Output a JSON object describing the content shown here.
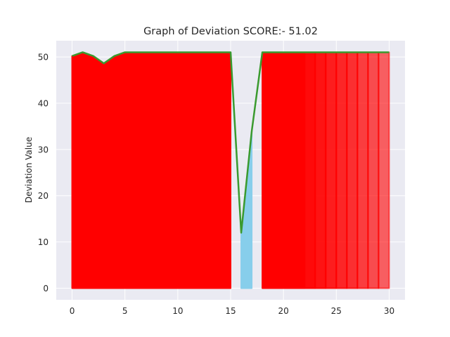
{
  "chart_data": {
    "type": "area",
    "title": "Graph of Deviation SCORE:- 51.02",
    "xlabel": "",
    "ylabel": "Deviation Value",
    "xlim": [
      -1.5,
      31.5
    ],
    "ylim": [
      -2.5,
      53.5
    ],
    "x_ticks": [
      0,
      5,
      10,
      15,
      20,
      25,
      30
    ],
    "y_ticks": [
      0,
      10,
      20,
      30,
      40,
      50
    ],
    "grid": true,
    "x": [
      0,
      1,
      2,
      3,
      4,
      5,
      6,
      7,
      8,
      9,
      10,
      11,
      12,
      13,
      14,
      15,
      16,
      17,
      18,
      19,
      20,
      21,
      22,
      23,
      24,
      25,
      26,
      27,
      28,
      29,
      30
    ],
    "values": [
      50.2,
      51,
      50.2,
      48.6,
      50.2,
      51,
      51,
      51,
      51,
      51,
      51,
      51,
      51,
      51,
      51,
      51,
      12,
      34,
      51,
      51,
      51,
      51,
      51,
      51,
      51,
      51,
      51,
      51,
      51,
      51,
      51
    ],
    "segments": [
      {
        "from": 0,
        "to": 15,
        "color": "#ff0000",
        "alpha": 1.0
      },
      {
        "from": 16,
        "to": 17,
        "color": "#87ceeb",
        "alpha": 1.0
      },
      {
        "from": 18,
        "to": 22,
        "color": "#ff0000",
        "alpha": 1.0
      },
      {
        "from": 22,
        "to": 23,
        "color": "#ff0000",
        "alpha": 0.96
      },
      {
        "from": 23,
        "to": 24,
        "color": "#ff0000",
        "alpha": 0.92
      },
      {
        "from": 24,
        "to": 25,
        "color": "#ff0000",
        "alpha": 0.88
      },
      {
        "from": 25,
        "to": 26,
        "color": "#ff0000",
        "alpha": 0.84
      },
      {
        "from": 26,
        "to": 27,
        "color": "#ff0000",
        "alpha": 0.8
      },
      {
        "from": 27,
        "to": 28,
        "color": "#ff0000",
        "alpha": 0.74
      },
      {
        "from": 28,
        "to": 29,
        "color": "#ff0000",
        "alpha": 0.68
      },
      {
        "from": 29,
        "to": 30,
        "color": "#ff0000",
        "alpha": 0.6
      }
    ],
    "line_color": "#3a9a2e",
    "background_color": "#eaeaf2",
    "grid_color": "#ffffff"
  }
}
